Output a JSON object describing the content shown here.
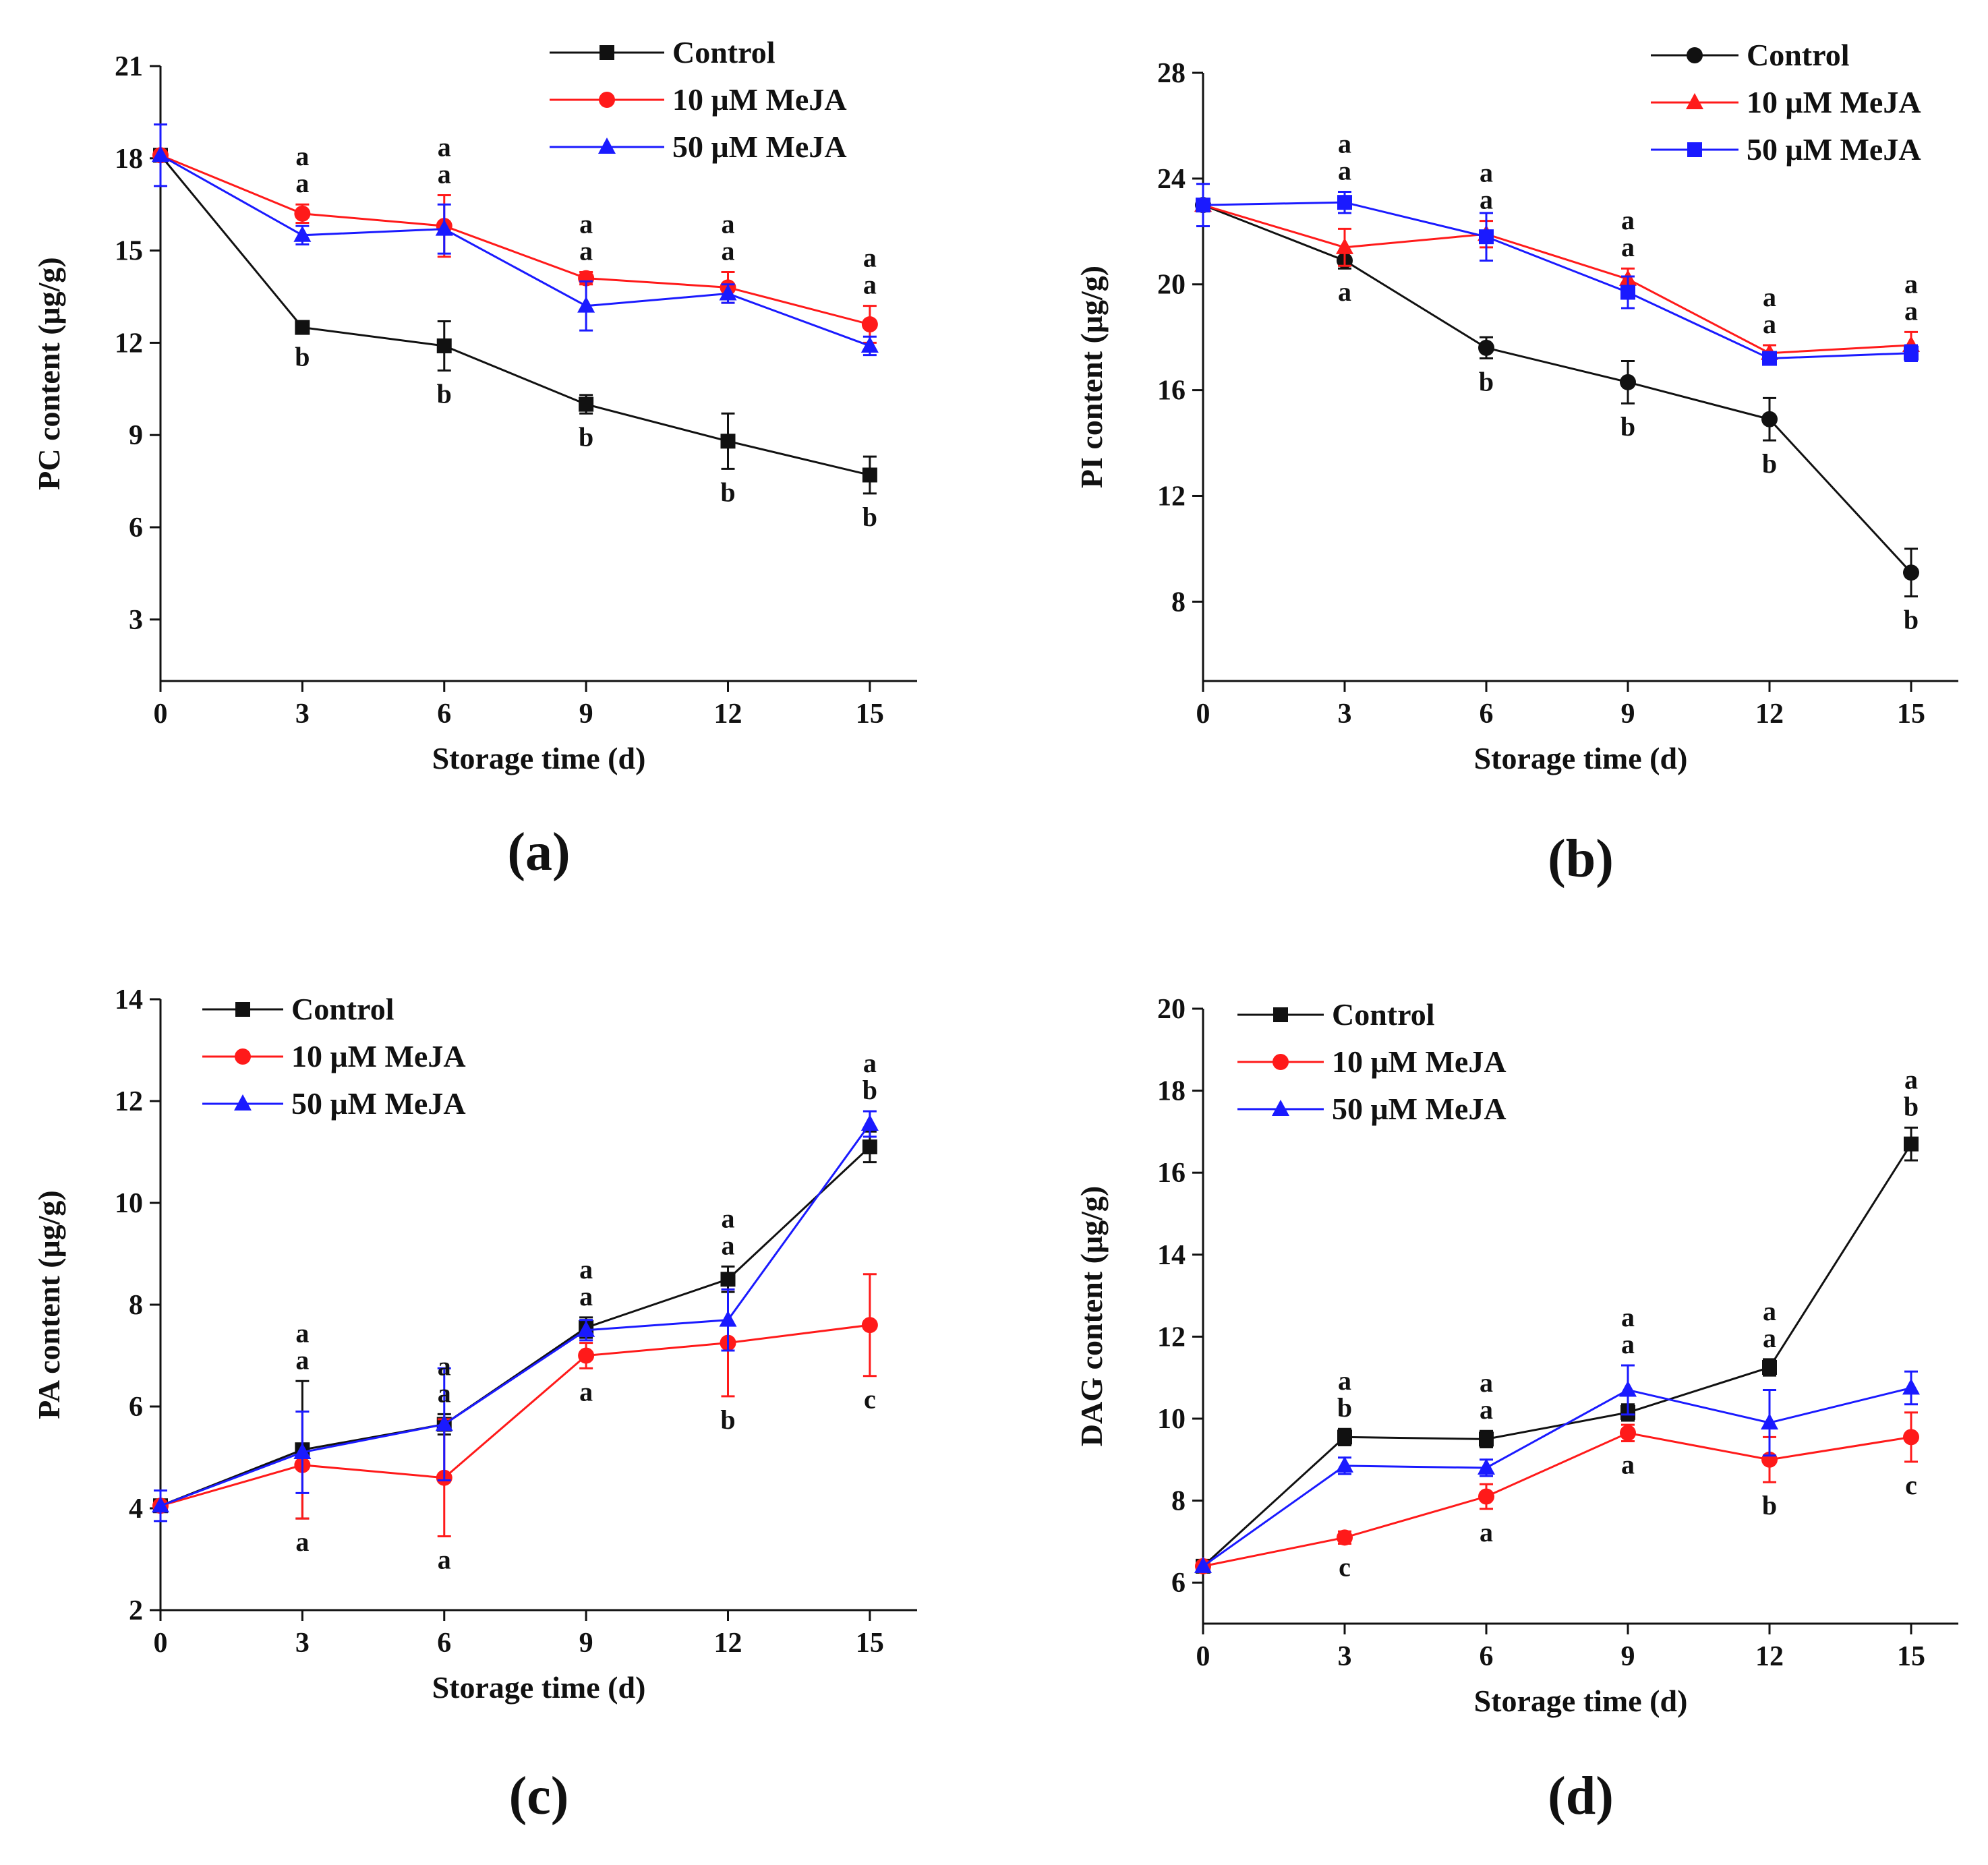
{
  "colors": {
    "control": "#111111",
    "mejA10": "#ff1a1a",
    "mejA50": "#1a1aff"
  },
  "chart_data": [
    {
      "type": "line",
      "panel": "(a)",
      "xlabel": "Storage time (d)",
      "ylabel": "PC content  (μg/g)",
      "x": [
        0,
        3,
        6,
        9,
        12,
        15
      ],
      "xlim": [
        0,
        16
      ],
      "xticks": [
        "0",
        "3",
        "6",
        "9",
        "12",
        "15"
      ],
      "ylim": [
        1,
        21
      ],
      "yticks": [
        "3",
        "6",
        "9",
        "12",
        "15",
        "18",
        "21"
      ],
      "legend": "top-right",
      "series": [
        {
          "name": "Control",
          "key": "control",
          "marker": "square",
          "values": [
            18.1,
            12.5,
            11.9,
            10.0,
            8.8,
            7.7
          ],
          "errors": [
            0.0,
            0.2,
            0.8,
            0.3,
            0.9,
            0.6
          ],
          "letters": [
            "",
            "b",
            "b",
            "b",
            "b",
            "b"
          ]
        },
        {
          "name": "10 μM MeJA",
          "key": "mejA10",
          "marker": "circle",
          "values": [
            18.1,
            16.2,
            15.8,
            14.1,
            13.8,
            12.6
          ],
          "errors": [
            0.0,
            0.3,
            1.0,
            0.2,
            0.5,
            0.6
          ],
          "letters": [
            "",
            "a",
            "a",
            "a",
            "a",
            "a"
          ]
        },
        {
          "name": "50 μM MeJA",
          "key": "mejA50",
          "marker": "triangle",
          "values": [
            18.1,
            15.5,
            15.7,
            13.2,
            13.6,
            11.9
          ],
          "errors": [
            1.0,
            0.3,
            0.8,
            0.8,
            0.3,
            0.3
          ],
          "letters": [
            "",
            "a",
            "a",
            "a",
            "a",
            "a"
          ]
        }
      ]
    },
    {
      "type": "line",
      "panel": "(b)",
      "xlabel": "Storage time (d)",
      "ylabel": "PI content (μg/g)",
      "x": [
        0,
        3,
        6,
        9,
        12,
        15
      ],
      "xlim": [
        0,
        16
      ],
      "xticks": [
        "0",
        "3",
        "6",
        "9",
        "12",
        "15"
      ],
      "ylim": [
        5,
        28
      ],
      "yticks": [
        "8",
        "12",
        "16",
        "20",
        "24",
        "28"
      ],
      "legend": "top-right",
      "series": [
        {
          "name": "Control",
          "key": "control",
          "marker": "circle",
          "values": [
            23.0,
            20.9,
            17.6,
            16.3,
            14.9,
            9.1
          ],
          "errors": [
            0.0,
            0.3,
            0.4,
            0.8,
            0.8,
            0.9
          ],
          "letters": [
            "",
            "a",
            "b",
            "b",
            "b",
            "b"
          ]
        },
        {
          "name": "10 μM MeJA",
          "key": "mejA10",
          "marker": "triangle",
          "values": [
            23.0,
            21.4,
            21.9,
            20.2,
            17.4,
            17.7
          ],
          "errors": [
            0.0,
            0.7,
            0.5,
            0.4,
            0.3,
            0.5
          ],
          "letters": [
            "",
            "a",
            "a",
            "a",
            "a",
            "a"
          ]
        },
        {
          "name": "50 μM MeJA",
          "key": "mejA50",
          "marker": "square",
          "values": [
            23.0,
            23.1,
            21.8,
            19.7,
            17.2,
            17.4
          ],
          "errors": [
            0.8,
            0.4,
            0.9,
            0.6,
            0.2,
            0.3
          ],
          "letters": [
            "",
            "a",
            "a",
            "a",
            "a",
            "a"
          ]
        }
      ]
    },
    {
      "type": "line",
      "panel": "(c)",
      "xlabel": "Storage time (d)",
      "ylabel": "PA content (μg/g)",
      "x": [
        0,
        3,
        6,
        9,
        12,
        15
      ],
      "xlim": [
        0,
        16
      ],
      "xticks": [
        "0",
        "3",
        "6",
        "9",
        "12",
        "15"
      ],
      "ylim": [
        2,
        14
      ],
      "yticks": [
        "2",
        "4",
        "6",
        "8",
        "10",
        "12",
        "14"
      ],
      "legend": "top-left",
      "series": [
        {
          "name": "Control",
          "key": "control",
          "marker": "square",
          "values": [
            4.05,
            5.15,
            5.65,
            7.55,
            8.5,
            11.1
          ],
          "errors": [
            0.0,
            1.35,
            0.2,
            0.2,
            0.25,
            0.3
          ],
          "letters": [
            "",
            "a",
            "a",
            "a",
            "a",
            "b"
          ]
        },
        {
          "name": "10 μM MeJA",
          "key": "mejA10",
          "marker": "circle",
          "values": [
            4.05,
            4.85,
            4.6,
            7.0,
            7.25,
            7.6
          ],
          "errors": [
            0.0,
            1.05,
            1.15,
            0.25,
            1.05,
            1.0
          ],
          "letters": [
            "",
            "a",
            "a",
            "a",
            "b",
            "c"
          ]
        },
        {
          "name": "50 μM MeJA",
          "key": "mejA50",
          "marker": "triangle",
          "values": [
            4.05,
            5.1,
            5.65,
            7.5,
            7.7,
            11.55
          ],
          "errors": [
            0.3,
            0.8,
            1.1,
            0.2,
            0.6,
            0.25
          ],
          "letters": [
            "",
            "a",
            "a",
            "a",
            "a",
            "a"
          ]
        }
      ]
    },
    {
      "type": "line",
      "panel": "(d)",
      "xlabel": "Storage time (d)",
      "ylabel": "DAG content (μg/g)",
      "x": [
        0,
        3,
        6,
        9,
        12,
        15
      ],
      "xlim": [
        0,
        16
      ],
      "xticks": [
        "0",
        "3",
        "6",
        "9",
        "12",
        "15"
      ],
      "ylim": [
        5,
        20
      ],
      "yticks": [
        "6",
        "8",
        "10",
        "12",
        "14",
        "16",
        "18",
        "20"
      ],
      "legend": "top-left",
      "series": [
        {
          "name": "Control",
          "key": "control",
          "marker": "square",
          "values": [
            6.4,
            9.55,
            9.5,
            10.15,
            11.25,
            16.7
          ],
          "errors": [
            0.0,
            0.2,
            0.2,
            0.2,
            0.2,
            0.4
          ],
          "letters": [
            "",
            "a",
            "a",
            "a",
            "a",
            "a"
          ]
        },
        {
          "name": "10 μM MeJA",
          "key": "mejA10",
          "marker": "circle",
          "values": [
            6.4,
            7.1,
            8.1,
            9.65,
            9.0,
            9.55
          ],
          "errors": [
            0.0,
            0.15,
            0.3,
            0.2,
            0.55,
            0.6
          ],
          "letters": [
            "",
            "c",
            "a",
            "a",
            "b",
            "c"
          ]
        },
        {
          "name": "50 μM MeJA",
          "key": "mejA50",
          "marker": "triangle",
          "values": [
            6.4,
            8.85,
            8.8,
            10.7,
            9.9,
            10.75
          ],
          "errors": [
            0.0,
            0.2,
            0.2,
            0.6,
            0.8,
            0.4
          ],
          "letters": [
            "",
            "b",
            "a",
            "a",
            "a",
            "b"
          ]
        }
      ]
    }
  ]
}
